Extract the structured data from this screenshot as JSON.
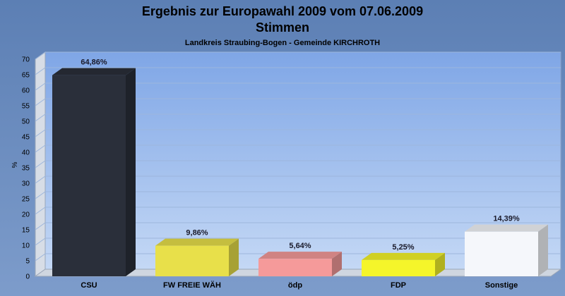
{
  "chart_data": {
    "type": "bar",
    "title": "Ergebnis zur Europawahl 2009 vom 07.06.2009",
    "title_line2": "Stimmen",
    "subtitle": "Landkreis Straubing-Bogen - Gemeinde KIRCHROTH",
    "ylabel": "%",
    "ylim": [
      0,
      70
    ],
    "yticks": [
      "0",
      "5",
      "10",
      "15",
      "20",
      "25",
      "30",
      "35",
      "40",
      "45",
      "50",
      "55",
      "60",
      "65",
      "70"
    ],
    "grid": true,
    "categories": [
      "CSU",
      "FW FREIE WÄH",
      "ödp",
      "FDP",
      "Sonstige"
    ],
    "values": [
      64.86,
      9.86,
      5.64,
      5.25,
      14.39
    ],
    "value_labels": [
      "64,86%",
      "9,86%",
      "5,64%",
      "5,25%",
      "14,39%"
    ],
    "colors": [
      "#2a2f3a",
      "#e8e04a",
      "#f59a9a",
      "#f5f52a",
      "#f5f7fb"
    ]
  }
}
